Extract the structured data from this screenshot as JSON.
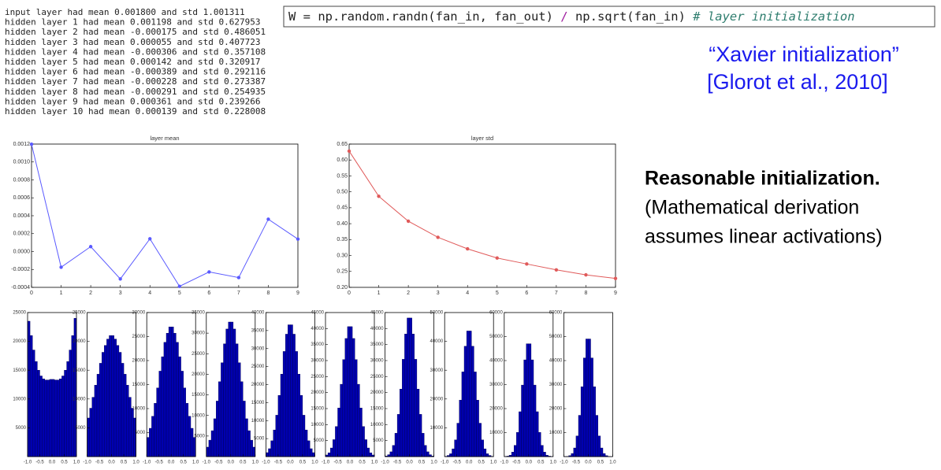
{
  "log": [
    "input layer had mean 0.001800 and std 1.001311",
    "hidden layer 1 had mean 0.001198 and std 0.627953",
    "hidden layer 2 had mean -0.000175 and std 0.486051",
    "hidden layer 3 had mean 0.000055 and std 0.407723",
    "hidden layer 4 had mean -0.000306 and std 0.357108",
    "hidden layer 5 had mean 0.000142 and std 0.320917",
    "hidden layer 6 had mean -0.000389 and std 0.292116",
    "hidden layer 7 had mean -0.000228 and std 0.273387",
    "hidden layer 8 had mean -0.000291 and std 0.254935",
    "hidden layer 9 had mean 0.000361 and std 0.239266",
    "hidden layer 10 had mean 0.000139 and std 0.228008"
  ],
  "code": {
    "segments": [
      "W = np.random.randn(fan_in, fan_out) ",
      "/",
      " np.sqrt(fan_in) ",
      "# layer initialization"
    ]
  },
  "citation": [
    "“Xavier initialization”",
    "[Glorot et al., 2010]"
  ],
  "notes": [
    "Reasonable initialization.",
    "(Mathematical derivation",
    "assumes linear activations)"
  ],
  "chart_data": [
    {
      "type": "line",
      "title": "layer mean",
      "color": "#5a5aff",
      "x": [
        0,
        1,
        2,
        3,
        4,
        5,
        6,
        7,
        8,
        9
      ],
      "values": [
        0.001198,
        -0.000175,
        5.5e-05,
        -0.000306,
        0.000142,
        -0.000389,
        -0.000228,
        -0.000291,
        0.000361,
        0.000139
      ],
      "xlim": [
        0,
        9
      ],
      "xticks": [
        0,
        1,
        2,
        3,
        4,
        5,
        6,
        7,
        8,
        9
      ],
      "ylim": [
        -0.0004,
        0.0012
      ],
      "yticks": [
        -0.0004,
        -0.0002,
        {
          "value": 0,
          "label": "0.0000"
        },
        0.0002,
        0.0004,
        0.0006,
        0.0008,
        {
          "value": 0.001,
          "label": "0.0010"
        },
        0.0012
      ]
    },
    {
      "type": "line",
      "title": "layer std",
      "color": "#e05a5a",
      "x": [
        0,
        1,
        2,
        3,
        4,
        5,
        6,
        7,
        8,
        9
      ],
      "values": [
        0.627953,
        0.486051,
        0.407723,
        0.357108,
        0.320917,
        0.292116,
        0.273387,
        0.254935,
        0.239266,
        0.228008
      ],
      "xlim": [
        0,
        9
      ],
      "xticks": [
        0,
        1,
        2,
        3,
        4,
        5,
        6,
        7,
        8,
        9
      ],
      "ylim": [
        0.2,
        0.65
      ],
      "yticks": [
        {
          "value": 0.2,
          "label": "0.20"
        },
        0.25,
        {
          "value": 0.3,
          "label": "0.30"
        },
        0.35,
        {
          "value": 0.4,
          "label": "0.40"
        },
        0.45,
        {
          "value": 0.5,
          "label": "0.50"
        },
        0.55,
        {
          "value": 0.6,
          "label": "0.60"
        },
        0.65
      ]
    },
    {
      "type": "histogram",
      "color": "#0000b0",
      "bins": [
        -1,
        -0.9,
        -0.8,
        -0.7,
        -0.6,
        -0.5,
        -0.4,
        -0.3,
        -0.2,
        -0.1,
        0,
        0.1,
        0.2,
        0.3,
        0.4,
        0.5,
        0.6,
        0.7,
        0.8,
        0.9,
        1
      ],
      "values": [
        23500,
        21000,
        18500,
        16500,
        15000,
        14000,
        13500,
        13300,
        13300,
        13400,
        13400,
        13300,
        13300,
        13500,
        14000,
        15000,
        16500,
        18500,
        21000,
        24000
      ],
      "xlim": [
        -1,
        1
      ],
      "xticks": [
        {
          "value": -1,
          "label": "-1.0"
        },
        {
          "value": -0.5,
          "label": "-0.5"
        },
        {
          "value": 0,
          "label": "0.0"
        },
        0.5,
        {
          "value": 1,
          "label": "1.0"
        }
      ],
      "ylim": [
        0,
        25000
      ],
      "yticks": [
        5000,
        10000,
        15000,
        20000,
        25000
      ]
    },
    {
      "type": "histogram",
      "color": "#0000b0",
      "bins": [
        -1,
        -0.9,
        -0.8,
        -0.7,
        -0.6,
        -0.5,
        -0.4,
        -0.3,
        -0.2,
        -0.1,
        0,
        0.1,
        0.2,
        0.3,
        0.4,
        0.5,
        0.6,
        0.7,
        0.8,
        0.9,
        1
      ],
      "values": [
        6700,
        8400,
        10300,
        12400,
        14300,
        16200,
        18100,
        19300,
        20400,
        21000,
        21000,
        20400,
        19300,
        18100,
        16200,
        14300,
        12400,
        10300,
        8400,
        6700
      ],
      "xlim": [
        -1,
        1
      ],
      "xticks": [
        {
          "value": -1,
          "label": "-1.0"
        },
        {
          "value": -0.5,
          "label": "-0.5"
        },
        {
          "value": 0,
          "label": "0.0"
        },
        0.5,
        {
          "value": 1,
          "label": "1.0"
        }
      ],
      "ylim": [
        0,
        25000
      ],
      "yticks": [
        5000,
        10000,
        15000,
        20000,
        25000
      ]
    },
    {
      "type": "histogram",
      "color": "#0000b0",
      "bins": [
        -1,
        -0.9,
        -0.8,
        -0.7,
        -0.6,
        -0.5,
        -0.4,
        -0.3,
        -0.2,
        -0.1,
        0,
        0.1,
        0.2,
        0.3,
        0.4,
        0.5,
        0.6,
        0.7,
        0.8,
        0.9,
        1
      ],
      "values": [
        4000,
        5900,
        8400,
        11100,
        14300,
        17800,
        20800,
        23800,
        25700,
        27000,
        27000,
        25700,
        23800,
        20800,
        17800,
        14300,
        11100,
        8400,
        5900,
        4000
      ],
      "xlim": [
        -1,
        1
      ],
      "xticks": [
        {
          "value": -1,
          "label": "-1.0"
        },
        {
          "value": -0.5,
          "label": "-0.5"
        },
        {
          "value": 0,
          "label": "0.0"
        },
        0.5,
        {
          "value": 1,
          "label": "1.0"
        }
      ],
      "ylim": [
        0,
        30000
      ],
      "yticks": [
        5000,
        10000,
        15000,
        20000,
        25000,
        30000
      ]
    },
    {
      "type": "histogram",
      "color": "#0000b0",
      "bins": [
        -1,
        -0.9,
        -0.8,
        -0.7,
        -0.6,
        -0.5,
        -0.4,
        -0.3,
        -0.2,
        -0.1,
        0,
        0.1,
        0.2,
        0.3,
        0.4,
        0.5,
        0.6,
        0.7,
        0.8,
        0.9,
        1
      ],
      "values": [
        2300,
        4000,
        6300,
        9200,
        13500,
        18200,
        22800,
        27400,
        31000,
        32700,
        32700,
        31000,
        27400,
        22800,
        18200,
        13500,
        9200,
        6300,
        4000,
        2300
      ],
      "xlim": [
        -1,
        1
      ],
      "xticks": [
        {
          "value": -1,
          "label": "-1.0"
        },
        {
          "value": -0.5,
          "label": "-0.5"
        },
        {
          "value": 0,
          "label": "0.0"
        },
        0.5,
        {
          "value": 1,
          "label": "1.0"
        }
      ],
      "ylim": [
        0,
        35000
      ],
      "yticks": [
        5000,
        10000,
        15000,
        20000,
        25000,
        30000,
        35000
      ]
    },
    {
      "type": "histogram",
      "color": "#0000b0",
      "bins": [
        -1,
        -0.9,
        -0.8,
        -0.7,
        -0.6,
        -0.5,
        -0.4,
        -0.3,
        -0.2,
        -0.1,
        0,
        0.1,
        0.2,
        0.3,
        0.4,
        0.5,
        0.6,
        0.7,
        0.8,
        0.9,
        1
      ],
      "values": [
        1100,
        2200,
        4400,
        7400,
        11500,
        17000,
        22900,
        29200,
        34000,
        36600,
        36600,
        34000,
        29200,
        22900,
        17000,
        11500,
        7400,
        4400,
        2200,
        1100
      ],
      "xlim": [
        -1,
        1
      ],
      "xticks": [
        {
          "value": -1,
          "label": "-1.0"
        },
        {
          "value": -0.5,
          "label": "-0.5"
        },
        {
          "value": 0,
          "label": "0.0"
        },
        0.5,
        {
          "value": 1,
          "label": "1.0"
        }
      ],
      "ylim": [
        0,
        40000
      ],
      "yticks": [
        5000,
        10000,
        15000,
        20000,
        25000,
        30000,
        35000,
        40000
      ]
    },
    {
      "type": "histogram",
      "color": "#0000b0",
      "bins": [
        -1,
        -0.9,
        -0.8,
        -0.7,
        -0.6,
        -0.5,
        -0.4,
        -0.3,
        -0.2,
        -0.1,
        0,
        0.1,
        0.2,
        0.3,
        0.4,
        0.5,
        0.6,
        0.7,
        0.8,
        0.9,
        1
      ],
      "values": [
        500,
        1200,
        2700,
        5300,
        9400,
        15200,
        22600,
        30300,
        36900,
        40600,
        40600,
        36900,
        30300,
        22600,
        15200,
        9400,
        5300,
        2700,
        1200,
        500
      ],
      "xlim": [
        -1,
        1
      ],
      "xticks": [
        {
          "value": -1,
          "label": "-1.0"
        },
        {
          "value": -0.5,
          "label": "-0.5"
        },
        {
          "value": 0,
          "label": "0.0"
        },
        0.5,
        {
          "value": 1,
          "label": "1.0"
        }
      ],
      "ylim": [
        0,
        45000
      ],
      "yticks": [
        5000,
        10000,
        15000,
        20000,
        25000,
        30000,
        35000,
        40000,
        45000
      ]
    },
    {
      "type": "histogram",
      "color": "#0000b0",
      "bins": [
        -1,
        -0.9,
        -0.8,
        -0.7,
        -0.6,
        -0.5,
        -0.4,
        -0.3,
        -0.2,
        -0.1,
        0,
        0.1,
        0.2,
        0.3,
        0.4,
        0.5,
        0.6,
        0.7,
        0.8,
        0.9,
        1
      ],
      "values": [
        200,
        600,
        1500,
        3500,
        7300,
        13200,
        21100,
        30400,
        38300,
        43300,
        43300,
        38300,
        30400,
        21100,
        13200,
        7300,
        3500,
        1500,
        600,
        200
      ],
      "xlim": [
        -1,
        1
      ],
      "xticks": [
        {
          "value": -1,
          "label": "-1.0"
        },
        {
          "value": -0.5,
          "label": "-0.5"
        },
        {
          "value": 0,
          "label": "0.0"
        },
        0.5,
        {
          "value": 1,
          "label": "1.0"
        }
      ],
      "ylim": [
        0,
        45000
      ],
      "yticks": [
        5000,
        10000,
        15000,
        20000,
        25000,
        30000,
        35000,
        40000,
        45000
      ]
    },
    {
      "type": "histogram",
      "color": "#0000b0",
      "bins": [
        -1,
        -0.9,
        -0.8,
        -0.7,
        -0.6,
        -0.5,
        -0.4,
        -0.3,
        -0.2,
        -0.1,
        0,
        0.1,
        0.2,
        0.3,
        0.4,
        0.5,
        0.6,
        0.7,
        0.8,
        0.9,
        1
      ],
      "values": [
        100,
        400,
        1000,
        2700,
        5800,
        11600,
        19600,
        29400,
        38300,
        43600,
        43600,
        38300,
        29400,
        19600,
        11600,
        5800,
        2700,
        1000,
        400,
        100
      ],
      "xlim": [
        -1,
        1
      ],
      "xticks": [
        {
          "value": -1,
          "label": "-1.0"
        },
        {
          "value": -0.5,
          "label": "-0.5"
        },
        {
          "value": 0,
          "label": "0.0"
        },
        0.5,
        {
          "value": 1,
          "label": "1.0"
        }
      ],
      "ylim": [
        0,
        50000
      ],
      "yticks": [
        10000,
        20000,
        30000,
        40000,
        50000
      ]
    },
    {
      "type": "histogram",
      "color": "#0000b0",
      "bins": [
        -1,
        -0.9,
        -0.8,
        -0.7,
        -0.6,
        -0.5,
        -0.4,
        -0.3,
        -0.2,
        -0.1,
        0,
        0.1,
        0.2,
        0.3,
        0.4,
        0.5,
        0.6,
        0.7,
        0.8,
        0.9,
        1
      ],
      "values": [
        50,
        200,
        600,
        1900,
        4700,
        10100,
        18700,
        29800,
        40300,
        47000,
        47000,
        40300,
        29800,
        18700,
        10100,
        4700,
        1900,
        600,
        200,
        50
      ],
      "xlim": [
        -1,
        1
      ],
      "xticks": [
        {
          "value": -1,
          "label": "-1.0"
        },
        {
          "value": -0.5,
          "label": "-0.5"
        },
        {
          "value": 0,
          "label": "0.0"
        },
        0.5,
        {
          "value": 1,
          "label": "1.0"
        }
      ],
      "ylim": [
        0,
        60000
      ],
      "yticks": [
        10000,
        20000,
        30000,
        40000,
        50000,
        60000
      ]
    },
    {
      "type": "histogram",
      "color": "#0000b0",
      "bins": [
        -1,
        -0.9,
        -0.8,
        -0.7,
        -0.6,
        -0.5,
        -0.4,
        -0.3,
        -0.2,
        -0.1,
        0,
        0.1,
        0.2,
        0.3,
        0.4,
        0.5,
        0.6,
        0.7,
        0.8,
        0.9,
        1
      ],
      "values": [
        20,
        100,
        400,
        1300,
        3600,
        8600,
        17200,
        29100,
        41100,
        49000,
        49000,
        41100,
        29100,
        17200,
        8600,
        3600,
        1300,
        400,
        100,
        20
      ],
      "xlim": [
        -1,
        1
      ],
      "xticks": [
        {
          "value": -1,
          "label": "-1.0"
        },
        {
          "value": -0.5,
          "label": "-0.5"
        },
        {
          "value": 0,
          "label": "0.0"
        },
        0.5,
        {
          "value": 1,
          "label": "1.0"
        }
      ],
      "ylim": [
        0,
        60000
      ],
      "yticks": [
        10000,
        20000,
        30000,
        40000,
        50000,
        60000
      ]
    }
  ]
}
